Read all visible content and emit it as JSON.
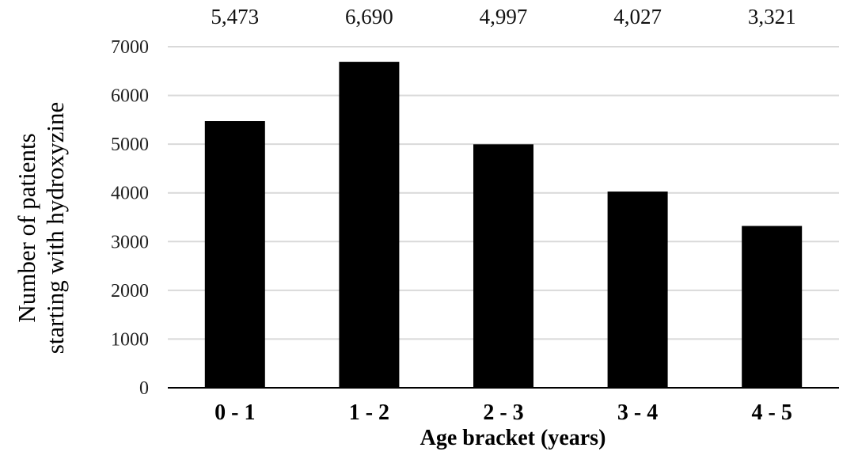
{
  "chart_data": {
    "type": "bar",
    "categories": [
      "0 - 1",
      "1 - 2",
      "2 - 3",
      "3 - 4",
      "4 - 5"
    ],
    "values": [
      5473,
      6690,
      4997,
      4027,
      3321
    ],
    "data_labels": [
      "5,473",
      "6,690",
      "4,997",
      "4,027",
      "3,321"
    ],
    "title": "",
    "xlabel": "Age bracket (years)",
    "ylabel_lines": [
      "Number of patients",
      "starting with hydroxyzine"
    ],
    "ylim": [
      0,
      7000
    ],
    "yticks": [
      0,
      1000,
      2000,
      3000,
      4000,
      5000,
      6000,
      7000
    ],
    "grid": true,
    "bar_color": "#000000",
    "grid_color": "#d9d9d9"
  }
}
